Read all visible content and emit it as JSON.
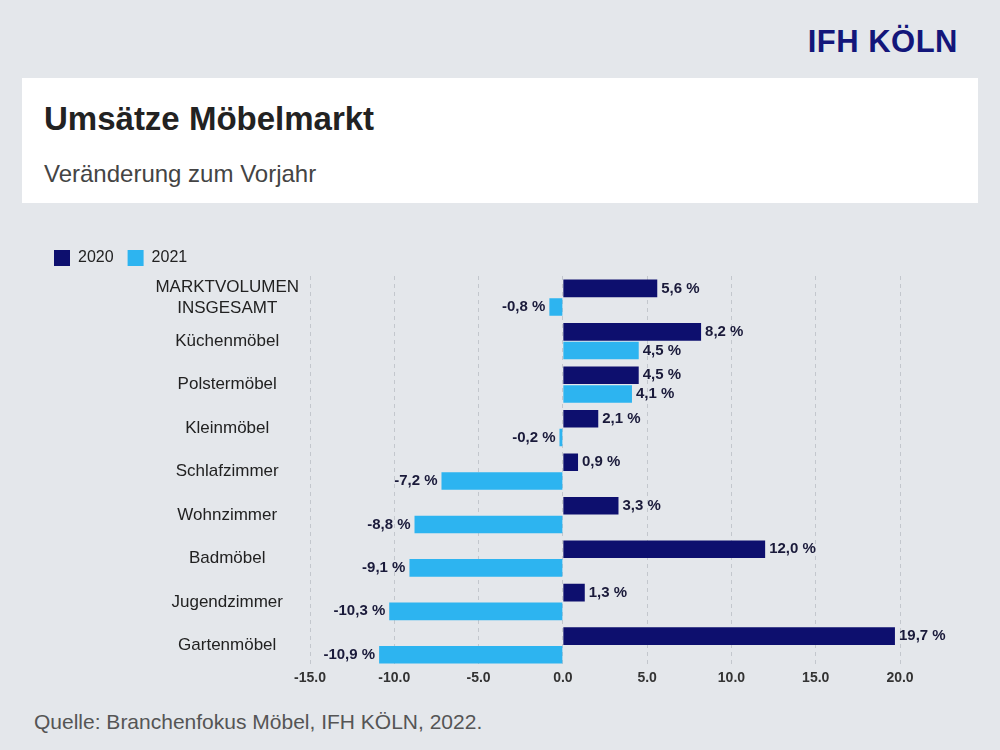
{
  "chart_data": {
    "type": "bar",
    "orientation": "horizontal",
    "logo": "IFH KÖLN",
    "title": "Umsätze Möbelmarkt",
    "subtitle": "Veränderung zum Vorjahr",
    "source": "Quelle: Branchenfokus Möbel, IFH KÖLN, 2022.",
    "categories": [
      "MARKTVOLUMEN INSGESAMT",
      "Küchenmöbel",
      "Polstermöbel",
      "Kleinmöbel",
      "Schlafzimmer",
      "Wohnzimmer",
      "Badmöbel",
      "Jugendzimmer",
      "Gartenmöbel"
    ],
    "series": [
      {
        "name": "2020",
        "color": "#0d0f6e",
        "values": [
          5.6,
          8.2,
          4.5,
          2.1,
          0.9,
          3.3,
          12.0,
          1.3,
          19.7
        ],
        "value_labels": [
          "5,6 %",
          "8,2 %",
          "4,5 %",
          "2,1 %",
          "0,9 %",
          "3,3 %",
          "12,0 %",
          "1,3 %",
          "19,7 %"
        ]
      },
      {
        "name": "2021",
        "color": "#2db4f0",
        "values": [
          -0.8,
          4.5,
          4.1,
          -0.2,
          -7.2,
          -8.8,
          -9.1,
          -10.3,
          -10.9
        ],
        "value_labels": [
          "-0,8 %",
          "4,5 %",
          "4,1 %",
          "-0,2 %",
          "-7,2 %",
          "-8,8 %",
          "-9,1 %",
          "-10,3 %",
          "-10,9 %"
        ]
      }
    ],
    "xlim": [
      -15,
      20
    ],
    "xticks": [
      {
        "value": -15,
        "label": "-15.0"
      },
      {
        "value": -10,
        "label": "-10.0"
      },
      {
        "value": -5,
        "label": "-5.0"
      },
      {
        "value": 0,
        "label": "0.0"
      },
      {
        "value": 5,
        "label": "5.0"
      },
      {
        "value": 10,
        "label": "10.0"
      },
      {
        "value": 15,
        "label": "15.0"
      },
      {
        "value": 20,
        "label": "20.0"
      }
    ],
    "grid": true,
    "legend": "top-left",
    "data_labels": true
  }
}
